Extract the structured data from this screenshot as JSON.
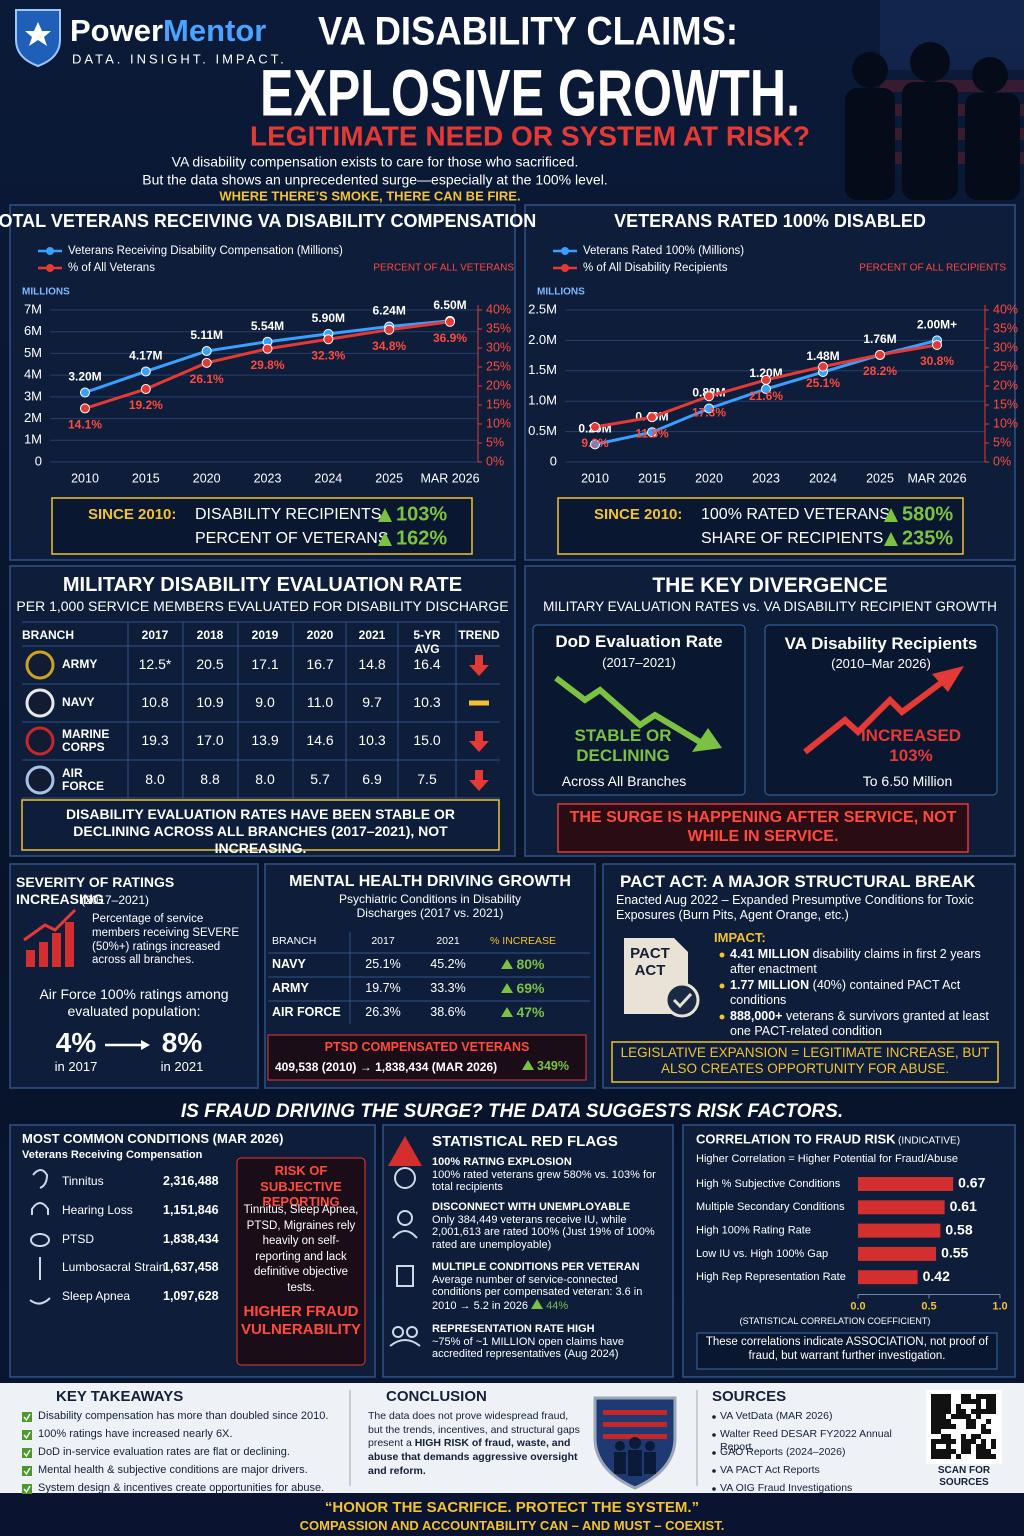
{
  "header": {
    "brand_1": "Power",
    "brand_2": "Mentor",
    "tagline": "DATA. INSIGHT. IMPACT.",
    "title_1": "VA DISABILITY CLAIMS:",
    "title_2": "EXPLOSIVE GROWTH.",
    "subtitle": "LEGITIMATE NEED OR SYSTEM AT RISK?",
    "intro": [
      "VA disability compensation exists to care for those who sacrificed.",
      "But the data shows an unprecedented surge—especially at the 100% level."
    ],
    "tagline_2": "WHERE THERE’S SMOKE, THERE CAN BE FIRE."
  },
  "chart_data": [
    {
      "type": "line",
      "title": "TOTAL VETERANS RECEIVING VA DISABILITY COMPENSATION",
      "ylabel": "MILLIONS",
      "y2label": "PERCENT OF ALL VETERANS",
      "categories": [
        "2010",
        "2015",
        "2020",
        "2023",
        "2024",
        "2025",
        "MAR 2026"
      ],
      "series": [
        {
          "name": "Veterans Receiving Disability Compensation (Millions)",
          "color": "#3aa0ff",
          "values": [
            3.2,
            4.17,
            5.11,
            5.54,
            5.9,
            6.24,
            6.5
          ],
          "value_labels": [
            "3.20M",
            "4.17M",
            "5.11M",
            "5.54M",
            "5.90M",
            "6.24M",
            "6.50M"
          ]
        },
        {
          "name": "% of All Veterans",
          "color": "#e53935",
          "axis": "y2",
          "values": [
            14.1,
            19.2,
            26.1,
            29.8,
            32.3,
            34.8,
            36.9
          ],
          "value_labels": [
            "14.1%",
            "19.2%",
            "26.1%",
            "29.8%",
            "32.3%",
            "34.8%",
            "36.9%"
          ]
        }
      ],
      "ylim": [
        0,
        7
      ],
      "yticks": [
        0,
        {
          "value": 1,
          "label": "1M"
        },
        {
          "value": 2,
          "label": "2M"
        },
        {
          "value": 3,
          "label": "3M"
        },
        {
          "value": 4,
          "label": "4M"
        },
        {
          "value": 5,
          "label": "5M"
        },
        {
          "value": 6,
          "label": "6M"
        },
        {
          "value": 7,
          "label": "7M"
        }
      ],
      "y2lim": [
        0,
        40
      ],
      "y2ticks": [
        {
          "value": 0,
          "label": "0%"
        },
        {
          "value": 5,
          "label": "5%"
        },
        {
          "value": 10,
          "label": "10%"
        },
        {
          "value": 15,
          "label": "15%"
        },
        {
          "value": 20,
          "label": "20%"
        },
        {
          "value": 25,
          "label": "25%"
        },
        {
          "value": 30,
          "label": "30%"
        },
        {
          "value": 35,
          "label": "35%"
        },
        {
          "value": 40,
          "label": "40%"
        }
      ],
      "grid": true,
      "summary": {
        "label": "SINCE 2010:",
        "items": [
          {
            "name": "DISABILITY RECIPIENTS",
            "change": "103%"
          },
          {
            "name": "PERCENT OF VETERANS",
            "change": "162%"
          }
        ]
      }
    },
    {
      "type": "line",
      "title": "VETERANS RATED 100% DISABLED",
      "ylabel": "MILLIONS",
      "y2label": "PERCENT OF ALL RECIPIENTS",
      "categories": [
        "2010",
        "2015",
        "2020",
        "2023",
        "2024",
        "2025",
        "MAR 2026"
      ],
      "series": [
        {
          "name": "Veterans Rated 100% (Millions)",
          "color": "#3aa0ff",
          "values": [
            0.29,
            0.49,
            0.88,
            1.2,
            1.48,
            1.76,
            2.0
          ],
          "value_labels": [
            "0.29M",
            "0.49M",
            "0.88M",
            "1.20M",
            "1.48M",
            "1.76M",
            "2.00M+"
          ]
        },
        {
          "name": "% of All Disability Recipients",
          "color": "#e53935",
          "axis": "y2",
          "values": [
            9.2,
            11.8,
            17.3,
            21.6,
            25.1,
            28.2,
            30.8
          ],
          "value_labels": [
            "9.2%",
            "11.8%",
            "17.3%",
            "21.6%",
            "25.1%",
            "28.2%",
            "30.8%"
          ]
        }
      ],
      "ylim": [
        0,
        2.5
      ],
      "yticks": [
        0,
        {
          "value": 0.5,
          "label": "0.5M"
        },
        {
          "value": 1,
          "label": "1.0M"
        },
        {
          "value": 1.5,
          "label": "1.5M"
        },
        {
          "value": 2,
          "label": "2.0M"
        },
        {
          "value": 2.5,
          "label": "2.5M"
        }
      ],
      "y2lim": [
        0,
        40
      ],
      "y2ticks": [
        {
          "value": 0,
          "label": "0%"
        },
        {
          "value": 5,
          "label": "5%"
        },
        {
          "value": 10,
          "label": "10%"
        },
        {
          "value": 15,
          "label": "15%"
        },
        {
          "value": 20,
          "label": "20%"
        },
        {
          "value": 25,
          "label": "25%"
        },
        {
          "value": 30,
          "label": "30%"
        },
        {
          "value": 35,
          "label": "35%"
        },
        {
          "value": 40,
          "label": "40%"
        }
      ],
      "grid": true,
      "summary": {
        "label": "SINCE 2010:",
        "items": [
          {
            "name": "100% RATED VETERANS",
            "change": "580%"
          },
          {
            "name": "SHARE OF RECIPIENTS",
            "change": "235%"
          }
        ]
      }
    },
    {
      "type": "bar",
      "title": "CORRELATION TO FRAUD RISK",
      "title_note": "(INDICATIVE)",
      "subtitle": "Higher Correlation = Higher Potential for Fraud/Abuse",
      "categories": [
        "High % Subjective Conditions",
        "Multiple Secondary Conditions",
        "High 100% Rating Rate",
        "Low IU vs. High 100% Gap",
        "High Rep Representation Rate"
      ],
      "values": [
        0.67,
        0.61,
        0.58,
        0.55,
        0.42
      ],
      "color": "#d32f2f",
      "xlim": [
        0,
        1
      ],
      "xticks": [
        {
          "value": 0,
          "label": "0.0"
        },
        0.5,
        {
          "value": 1,
          "label": "1.0"
        }
      ],
      "xlabel": "(STATISTICAL CORRELATION COEFFICIENT)",
      "note": "These correlations indicate ASSOCIATION, not proof of fraud, but warrant further investigation."
    }
  ],
  "eval_table": {
    "title": "MILITARY DISABILITY EVALUATION RATE",
    "subtitle": "PER 1,000 SERVICE MEMBERS EVALUATED FOR DISABILITY DISCHARGE",
    "header": [
      "BRANCH",
      "2017",
      "2018",
      "2019",
      "2020",
      "2021",
      "5-YR AVG",
      "TREND"
    ],
    "rows": [
      {
        "branch": "ARMY",
        "values": [
          "12.5*",
          "20.5",
          "17.1",
          "16.7",
          "14.8",
          "16.4"
        ],
        "trend": "down"
      },
      {
        "branch": "NAVY",
        "values": [
          "10.8",
          "10.9",
          "9.0",
          "11.0",
          "9.7",
          "10.3"
        ],
        "trend": "flat"
      },
      {
        "branch": "MARINE CORPS",
        "values": [
          "19.3",
          "17.0",
          "13.9",
          "14.6",
          "10.3",
          "15.0"
        ],
        "trend": "down"
      },
      {
        "branch": "AIR FORCE",
        "values": [
          "8.0",
          "8.8",
          "8.0",
          "5.7",
          "6.9",
          "7.5"
        ],
        "trend": "down"
      }
    ],
    "note": "DISABILITY EVALUATION RATES HAVE BEEN STABLE OR DECLINING ACROSS ALL BRANCHES (2017–2021), NOT INCREASING."
  },
  "divergence": {
    "title": "THE KEY DIVERGENCE",
    "subtitle": "MILITARY EVALUATION RATES vs. VA DISABILITY RECIPIENT GROWTH",
    "cards": [
      {
        "title": "DoD Evaluation Rate",
        "period": "(2017–2021)",
        "result": "STABLE OR DECLINING",
        "note": "Across All Branches"
      },
      {
        "title": "VA Disability Recipients",
        "period": "(2010–Mar 2026)",
        "result": "INCREASED 103%",
        "note": "To 6.50 Million"
      }
    ],
    "banner": "THE SURGE IS HAPPENING AFTER SERVICE, NOT WHILE IN SERVICE."
  },
  "severity": {
    "title": "SEVERITY OF RATINGS INCREASING",
    "period": "(2017–2021)",
    "text": "Percentage of service members receiving SEVERE (50%+) ratings increased across all branches.",
    "af_text": "Air Force 100% ratings among evaluated population:",
    "from": "4%",
    "from_label": "in 2017",
    "to": "8%",
    "to_label": "in 2021"
  },
  "mental_health": {
    "title": "MENTAL HEALTH DRIVING GROWTH",
    "subtitle": "Psychiatric Conditions in Disability Discharges (2017 vs. 2021)",
    "header": [
      "BRANCH",
      "2017",
      "2021",
      "% INCREASE"
    ],
    "rows": [
      [
        "NAVY",
        "25.1%",
        "45.2%",
        "80%"
      ],
      [
        "ARMY",
        "19.7%",
        "33.3%",
        "69%"
      ],
      [
        "AIR FORCE",
        "26.3%",
        "38.6%",
        "47%"
      ]
    ],
    "ptsd_title": "PTSD COMPENSATED VETERANS",
    "ptsd_text": "409,538 (2010) → 1,838,434 (MAR 2026)",
    "ptsd_change": "349%"
  },
  "pact": {
    "title": "PACT ACT: A MAJOR STRUCTURAL BREAK",
    "subtitle": "Enacted Aug 2022 – Expanded Presumptive Conditions for Toxic Exposures (Burn Pits, Agent Orange, etc.)",
    "icon": "PACT ACT",
    "impact": "IMPACT:",
    "bullets": [
      {
        "bold": "4.41 MILLION",
        "text": "disability claims in first 2 years after enactment"
      },
      {
        "bold": "1.77 MILLION",
        "text": "(40%) contained PACT Act conditions"
      },
      {
        "bold": "888,000+",
        "text": "veterans & survivors granted at least one PACT-related condition"
      }
    ],
    "banner": "LEGISLATIVE EXPANSION = LEGITIMATE INCREASE, BUT ALSO CREATES OPPORTUNITY FOR ABUSE."
  },
  "fraud": {
    "title": "IS FRAUD DRIVING THE SURGE? THE DATA SUGGESTS RISK FACTORS.",
    "conditions_title": "MOST COMMON CONDITIONS (MAR 2026)",
    "conditions_subtitle": "Veterans Receiving Compensation",
    "conditions": [
      [
        "Tinnitus",
        "2,316,488"
      ],
      [
        "Hearing Loss",
        "1,151,846"
      ],
      [
        "PTSD",
        "1,838,434"
      ],
      [
        "Lumbosacral Strain",
        "1,637,458"
      ],
      [
        "Sleep Apnea",
        "1,097,628"
      ]
    ],
    "risk_title": "RISK OF SUBJECTIVE REPORTING",
    "risk_text": "Tinnitus, Sleep Apnea, PTSD, Migraines rely heavily on self-reporting and lack definitive objective tests.",
    "risk_result": "HIGHER FRAUD VULNERABILITY",
    "flags_title": "STATISTICAL RED FLAGS",
    "flags": [
      {
        "title": "100% RATING EXPLOSION",
        "text": "100% rated veterans grew 580% vs. 103% for total recipients"
      },
      {
        "title": "DISCONNECT WITH UNEMPLOYABLE",
        "text": "Only 384,449 veterans receive IU, while 2,001,613 are rated 100% (Just 19% of 100% rated are unemployable)"
      },
      {
        "title": "MULTIPLE CONDITIONS PER VETERAN",
        "text": "Average number of service-connected conditions per compensated veteran: 3.6 in 2010 → 5.2 in 2026",
        "change": "44%"
      },
      {
        "title": "REPRESENTATION RATE HIGH",
        "text": "~75% of ~1 MILLION open claims have accredited representatives (Aug 2024)"
      }
    ]
  },
  "footer": {
    "takeaways_title": "KEY TAKEAWAYS",
    "takeaways": [
      "Disability compensation has more than doubled since 2010.",
      "100% ratings have increased nearly 6X.",
      "DoD in-service evaluation rates are flat or declining.",
      "Mental health & subjective conditions are major drivers.",
      "System design & incentives create opportunities for abuse."
    ],
    "conclusion_title": "CONCLUSION",
    "conclusion_text": "The data does not prove widespread fraud, but the trends, incentives, and structural gaps present a",
    "conclusion_bold": "HIGH RISK of fraud, waste, and abuse that demands aggressive oversight and reform.",
    "sources_title": "SOURCES",
    "sources": [
      "VA VetData (MAR 2026)",
      "Walter Reed DESAR FY2022 Annual Report",
      "GAO Reports (2024–2026)",
      "VA PACT Act Reports",
      "VA OIG Fraud Investigations"
    ],
    "qr_label": "SCAN FOR SOURCES",
    "quote": "“HONOR THE SACRIFICE. PROTECT THE SYSTEM.”",
    "closing": "COMPASSION AND ACCOUNTABILITY CAN – AND MUST – COEXIST."
  }
}
